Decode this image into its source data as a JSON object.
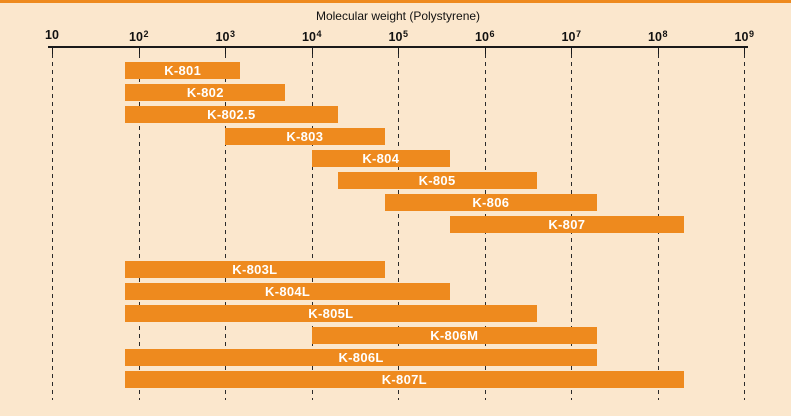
{
  "chart_data": {
    "type": "bar",
    "orientation": "horizontal",
    "title": "Molecular weight (Polystyrene)",
    "x_scale": "log10",
    "x_axis": {
      "label": "Molecular weight (Polystyrene)",
      "tick_exponents": [
        1,
        2,
        3,
        4,
        5,
        6,
        7,
        8,
        9
      ],
      "range": [
        10,
        1000000000
      ],
      "gridlines": "dashed-vertical"
    },
    "groups": [
      {
        "name": "standard-series",
        "bars": [
          {
            "label": "K-801",
            "min": 70,
            "max": 1500
          },
          {
            "label": "K-802",
            "min": 70,
            "max": 5000
          },
          {
            "label": "K-802.5",
            "min": 70,
            "max": 20000
          },
          {
            "label": "K-803",
            "min": 1000,
            "max": 70000
          },
          {
            "label": "K-804",
            "min": 10000,
            "max": 400000
          },
          {
            "label": "K-805",
            "min": 20000,
            "max": 4000000
          },
          {
            "label": "K-806",
            "min": 70000,
            "max": 20000000
          },
          {
            "label": "K-807",
            "min": 400000,
            "max": 200000000
          }
        ]
      },
      {
        "name": "linear-mixed-series",
        "bars": [
          {
            "label": "K-803L",
            "min": 70,
            "max": 70000
          },
          {
            "label": "K-804L",
            "min": 70,
            "max": 400000
          },
          {
            "label": "K-805L",
            "min": 70,
            "max": 4000000
          },
          {
            "label": "K-806M",
            "min": 10000,
            "max": 20000000
          },
          {
            "label": "K-806L",
            "min": 70,
            "max": 20000000
          },
          {
            "label": "K-807L",
            "min": 70,
            "max": 200000000
          }
        ]
      }
    ],
    "colors": {
      "background": "#fbe7cd",
      "bar": "#ee8a1e",
      "bar_label": "#ffffff",
      "frame": "#ee8a1e",
      "axis": "#1a1a1a"
    },
    "legend": "none"
  }
}
